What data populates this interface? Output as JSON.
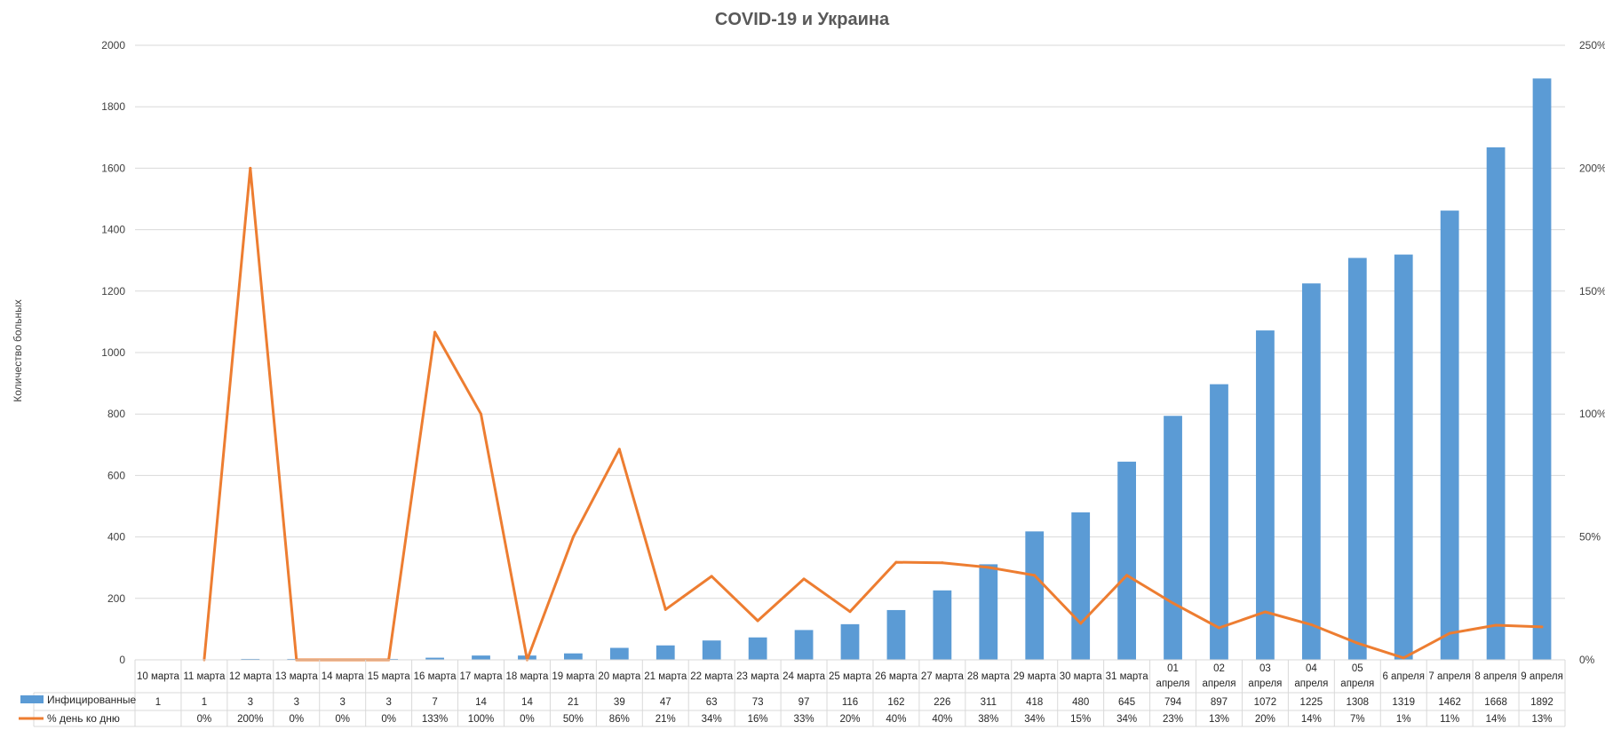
{
  "chart_data": {
    "type": "bar",
    "title": "COVID-19 и Украина",
    "ylabel": "Количество больных",
    "ylim": [
      0,
      2000
    ],
    "y_ticks": [
      "0",
      "200",
      "400",
      "600",
      "800",
      "1000",
      "1200",
      "1400",
      "1600",
      "1800",
      "2000"
    ],
    "y2lim": [
      0,
      2.5
    ],
    "y2_ticks": [
      "0%",
      "50%",
      "100%",
      "150%",
      "200%",
      "250%"
    ],
    "grid": true,
    "legend_position": "data table, left",
    "categories": [
      [
        "10 марта"
      ],
      [
        "11 марта"
      ],
      [
        "12 марта"
      ],
      [
        "13 марта"
      ],
      [
        "14 марта"
      ],
      [
        "15 марта"
      ],
      [
        "16 марта"
      ],
      [
        "17 марта"
      ],
      [
        "18 марта"
      ],
      [
        "19 марта"
      ],
      [
        "20 марта"
      ],
      [
        "21 марта"
      ],
      [
        "22 марта"
      ],
      [
        "23 марта"
      ],
      [
        "24 марта"
      ],
      [
        "25 марта"
      ],
      [
        "26 марта"
      ],
      [
        "27 марта"
      ],
      [
        "28 марта"
      ],
      [
        "29 марта"
      ],
      [
        "30 марта"
      ],
      [
        "31 марта"
      ],
      [
        "01",
        "апреля"
      ],
      [
        "02",
        "апреля"
      ],
      [
        "03",
        "апреля"
      ],
      [
        "04",
        "апреля"
      ],
      [
        "05",
        "апреля"
      ],
      [
        "6 апреля"
      ],
      [
        "7 апреля"
      ],
      [
        "8 апреля"
      ],
      [
        "9 апреля"
      ]
    ],
    "series": [
      {
        "name": "Инфицированные",
        "kind": "bar",
        "axis": "left",
        "color": "#5B9BD5",
        "values": [
          1,
          1,
          3,
          3,
          3,
          3,
          7,
          14,
          14,
          21,
          39,
          47,
          63,
          73,
          97,
          116,
          162,
          226,
          311,
          418,
          480,
          645,
          794,
          897,
          1072,
          1225,
          1308,
          1319,
          1462,
          1668,
          1892
        ],
        "labels": [
          "1",
          "1",
          "3",
          "3",
          "3",
          "3",
          "7",
          "14",
          "14",
          "21",
          "39",
          "47",
          "63",
          "73",
          "97",
          "116",
          "162",
          "226",
          "311",
          "418",
          "480",
          "645",
          "794",
          "897",
          "1072",
          "1225",
          "1308",
          "1319",
          "1462",
          "1668",
          "1892"
        ]
      },
      {
        "name": "% день ко дню",
        "kind": "line",
        "axis": "right",
        "color": "#ED7D31",
        "values": [
          null,
          0,
          2.0,
          0,
          0,
          0,
          1.333,
          1.0,
          0,
          0.5,
          0.857,
          0.205,
          0.34,
          0.159,
          0.329,
          0.196,
          0.397,
          0.395,
          0.376,
          0.344,
          0.148,
          0.344,
          0.231,
          0.13,
          0.195,
          0.143,
          0.068,
          0.008,
          0.108,
          0.141,
          0.134
        ],
        "labels": [
          "",
          "0%",
          "200%",
          "0%",
          "0%",
          "0%",
          "133%",
          "100%",
          "0%",
          "50%",
          "86%",
          "21%",
          "34%",
          "16%",
          "33%",
          "20%",
          "40%",
          "40%",
          "38%",
          "34%",
          "15%",
          "34%",
          "23%",
          "13%",
          "20%",
          "14%",
          "7%",
          "1%",
          "11%",
          "14%",
          "13%"
        ]
      }
    ]
  }
}
